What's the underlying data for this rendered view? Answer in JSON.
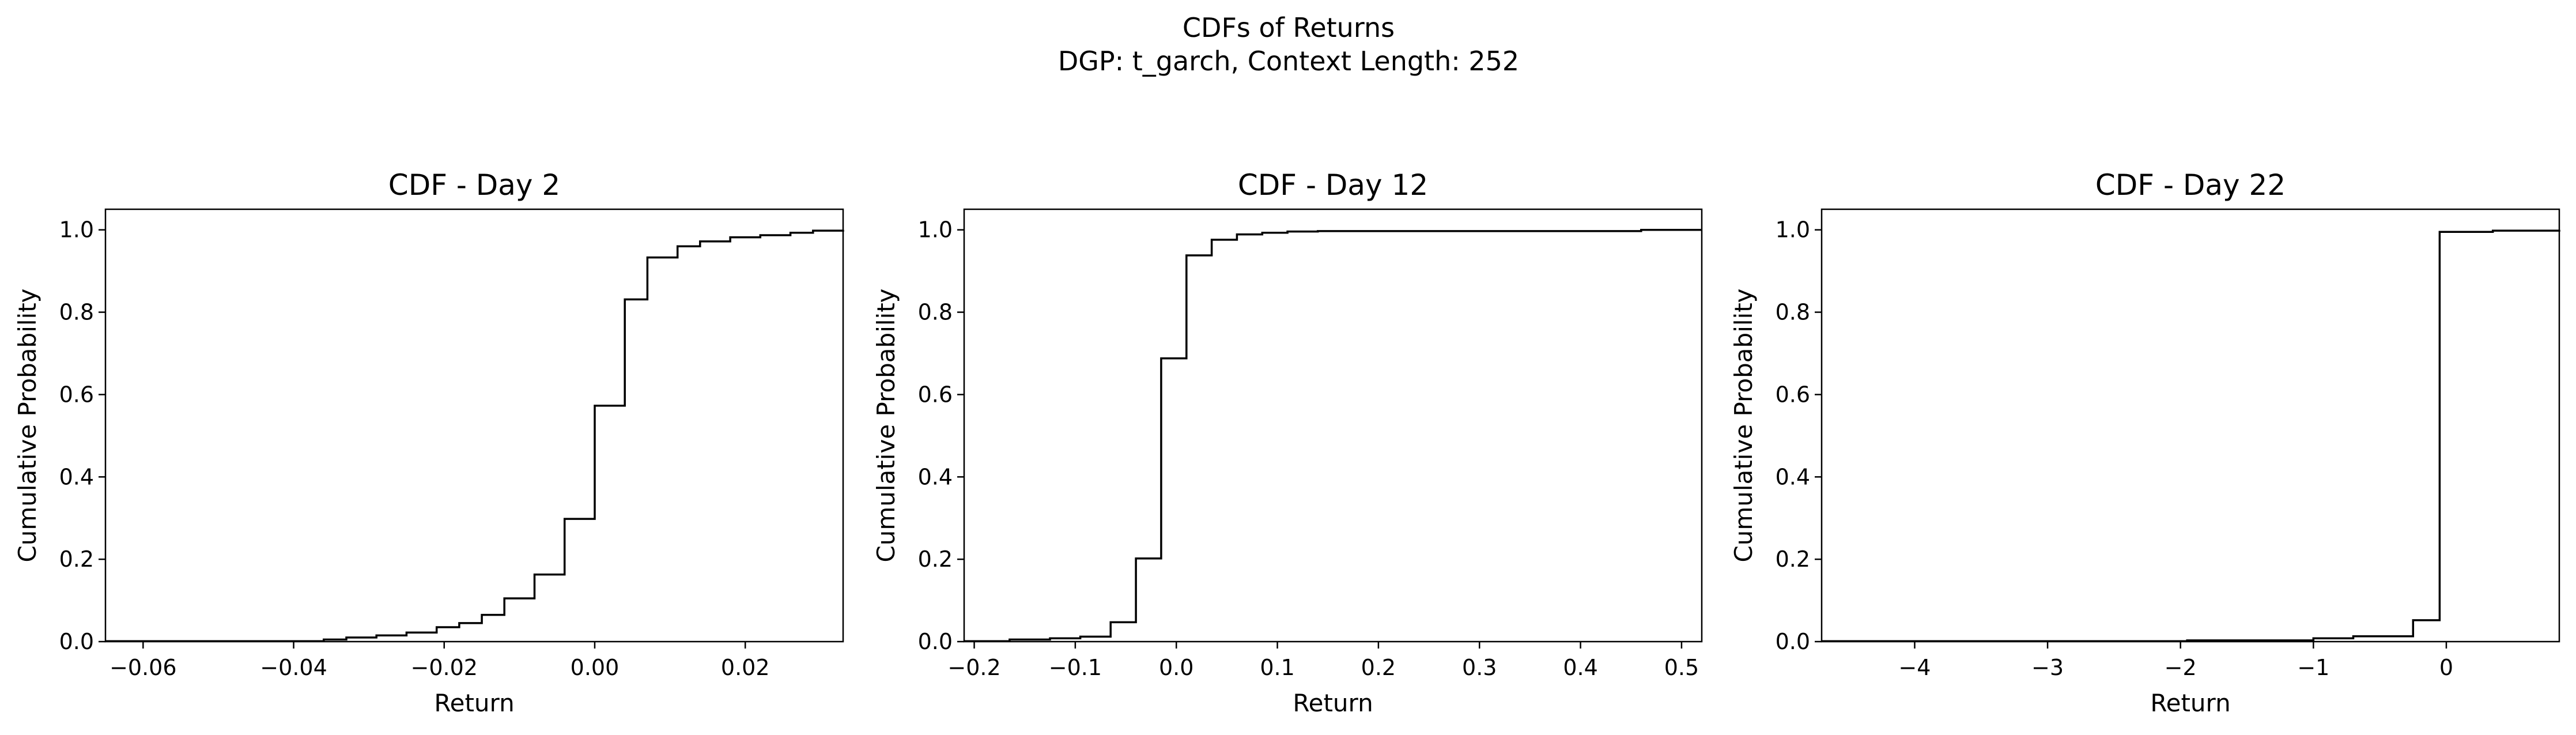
{
  "figure": {
    "suptitle_line1": "CDFs of Returns",
    "suptitle_line2": "DGP: t_garch, Context Length: 252"
  },
  "colors": {
    "line": "#000000",
    "axes": "#000000",
    "background": "#ffffff"
  },
  "chart_data": [
    {
      "type": "line",
      "step": "post",
      "title": "CDF - Day 2",
      "xlabel": "Return",
      "ylabel": "Cumulative Probability",
      "xlim": [
        -0.065,
        0.033
      ],
      "ylim": [
        0,
        1.05
      ],
      "grid": false,
      "xticks": [
        -0.06,
        -0.04,
        -0.02,
        0.0,
        0.02
      ],
      "xtick_labels": [
        "−0.06",
        "−0.04",
        "−0.02",
        "0.00",
        "0.02"
      ],
      "yticks": [
        0.0,
        0.2,
        0.4,
        0.6,
        0.8,
        1.0
      ],
      "ytick_labels": [
        "0.0",
        "0.2",
        "0.4",
        "0.6",
        "0.8",
        "1.0"
      ],
      "series": [
        {
          "x": [
            -0.065,
            -0.036,
            -0.033,
            -0.029,
            -0.025,
            -0.021,
            -0.018,
            -0.015,
            -0.012,
            -0.008,
            -0.004,
            0.0,
            0.004,
            0.007,
            0.011,
            0.014,
            0.018,
            0.022,
            0.026,
            0.029,
            0.033
          ],
          "y": [
            0.001,
            0.005,
            0.01,
            0.015,
            0.022,
            0.035,
            0.045,
            0.065,
            0.105,
            0.163,
            0.298,
            0.573,
            0.831,
            0.933,
            0.96,
            0.972,
            0.982,
            0.987,
            0.993,
            0.998,
            1.0
          ]
        }
      ]
    },
    {
      "type": "line",
      "step": "post",
      "title": "CDF - Day 12",
      "xlabel": "Return",
      "ylabel": "Cumulative Probability",
      "xlim": [
        -0.21,
        0.52
      ],
      "ylim": [
        0,
        1.05
      ],
      "grid": false,
      "xticks": [
        -0.2,
        -0.1,
        0.0,
        0.1,
        0.2,
        0.3,
        0.4,
        0.5
      ],
      "xtick_labels": [
        "−0.2",
        "−0.1",
        "0.0",
        "0.1",
        "0.2",
        "0.3",
        "0.4",
        "0.5"
      ],
      "yticks": [
        0.0,
        0.2,
        0.4,
        0.6,
        0.8,
        1.0
      ],
      "ytick_labels": [
        "0.0",
        "0.2",
        "0.4",
        "0.6",
        "0.8",
        "1.0"
      ],
      "series": [
        {
          "x": [
            -0.21,
            -0.165,
            -0.125,
            -0.095,
            -0.065,
            -0.04,
            -0.015,
            0.01,
            0.035,
            0.06,
            0.085,
            0.11,
            0.14,
            0.46,
            0.52
          ],
          "y": [
            0.001,
            0.005,
            0.008,
            0.012,
            0.047,
            0.202,
            0.688,
            0.938,
            0.976,
            0.989,
            0.993,
            0.996,
            0.997,
            1.0,
            1.0
          ]
        }
      ]
    },
    {
      "type": "line",
      "step": "post",
      "title": "CDF - Day 22",
      "xlabel": "Return",
      "ylabel": "Cumulative Probability",
      "xlim": [
        -4.7,
        0.85
      ],
      "ylim": [
        0,
        1.05
      ],
      "grid": false,
      "xticks": [
        -4,
        -3,
        -2,
        -1,
        0
      ],
      "xtick_labels": [
        "−4",
        "−3",
        "−2",
        "−1",
        "0"
      ],
      "yticks": [
        0.0,
        0.2,
        0.4,
        0.6,
        0.8,
        1.0
      ],
      "ytick_labels": [
        "0.0",
        "0.2",
        "0.4",
        "0.6",
        "0.8",
        "1.0"
      ],
      "series": [
        {
          "x": [
            -4.7,
            -1.95,
            -1.0,
            -0.7,
            -0.25,
            -0.05,
            0.35,
            0.85
          ],
          "y": [
            0.001,
            0.003,
            0.008,
            0.013,
            0.052,
            0.995,
            0.998,
            1.0
          ]
        }
      ]
    }
  ]
}
